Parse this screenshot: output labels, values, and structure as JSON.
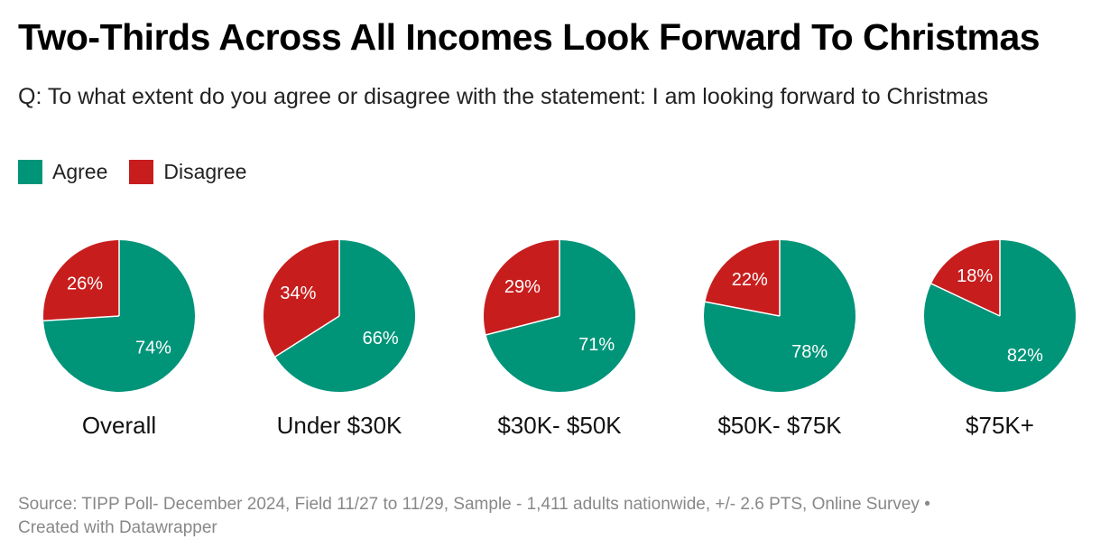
{
  "header": {
    "title": "Two-Thirds Across All Incomes Look Forward To Christmas",
    "subtitle": "Q: To what extent do you agree or disagree with the statement: I am looking forward to Christmas"
  },
  "legend": [
    {
      "label": "Agree",
      "color": "#009479"
    },
    {
      "label": "Disagree",
      "color": "#c71e1d"
    }
  ],
  "chart_data": {
    "type": "pie",
    "title": "Two-Thirds Across All Incomes Look Forward To Christmas",
    "series_names": [
      "Agree",
      "Disagree"
    ],
    "colors": {
      "Agree": "#009479",
      "Disagree": "#c71e1d"
    },
    "pies": [
      {
        "category": "Overall",
        "agree": 74,
        "disagree": 26
      },
      {
        "category": "Under $30K",
        "agree": 66,
        "disagree": 34
      },
      {
        "category": "$30K- $50K",
        "agree": 71,
        "disagree": 29
      },
      {
        "category": "$50K- $75K",
        "agree": 78,
        "disagree": 22
      },
      {
        "category": "$75K+",
        "agree": 82,
        "disagree": 18
      }
    ],
    "value_suffix": "%"
  },
  "footer": {
    "source_line": "Source: TIPP Poll- December 2024, Field 11/27 to 11/29, Sample - 1,411 adults nationwide, +/- 2.6 PTS, Online Survey •",
    "credit_line": "Created with Datawrapper"
  }
}
